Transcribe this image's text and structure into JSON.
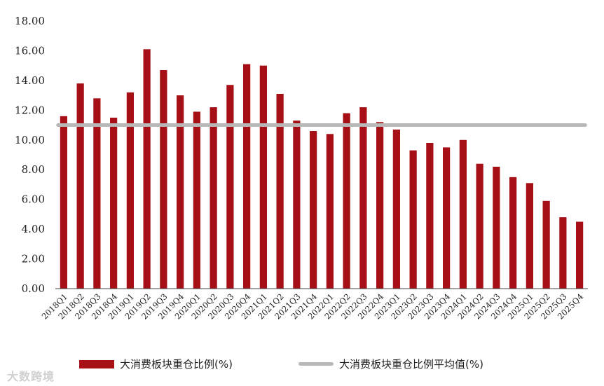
{
  "chart_data": {
    "type": "bar",
    "title": "",
    "xlabel": "",
    "ylabel": "",
    "ylim": [
      0,
      18
    ],
    "yticks": [
      "0.00",
      "2.00",
      "4.00",
      "6.00",
      "8.00",
      "10.00",
      "12.00",
      "14.00",
      "16.00",
      "18.00"
    ],
    "categories": [
      "2018Q1",
      "2018Q2",
      "2018Q3",
      "2018Q4",
      "2019Q1",
      "2019Q2",
      "2019Q3",
      "2019Q4",
      "2020Q1",
      "2020Q2",
      "2020Q3",
      "2020Q4",
      "2021Q1",
      "2021Q2",
      "2021Q3",
      "2021Q4",
      "2022Q1",
      "2022Q2",
      "2022Q3",
      "2022Q4",
      "2023Q1",
      "2023Q2",
      "2023Q3",
      "2023Q4",
      "2024Q1",
      "2024Q2",
      "2024Q3",
      "2024Q4",
      "2025Q1",
      "2025Q2",
      "2025Q3",
      "2025Q4"
    ],
    "series": [
      {
        "name": "大消费板块重仓比例(%)",
        "kind": "bar",
        "color": "#A50F15",
        "values": [
          11.6,
          13.8,
          12.8,
          11.5,
          13.2,
          16.1,
          14.7,
          13.0,
          11.9,
          12.2,
          13.7,
          15.1,
          15.0,
          13.1,
          11.3,
          10.6,
          10.4,
          11.8,
          12.2,
          11.2,
          10.7,
          9.3,
          9.8,
          9.5,
          10.0,
          8.4,
          8.2,
          7.5,
          7.1,
          5.9,
          4.8,
          4.5
        ]
      },
      {
        "name": "大消费板块重仓比例平均值(%)",
        "kind": "line",
        "color": "#B8B8B8",
        "value": 11.0
      }
    ],
    "legend_position": "bottom",
    "grid": false
  },
  "watermark": {
    "icon": "",
    "text": "大数跨境"
  }
}
